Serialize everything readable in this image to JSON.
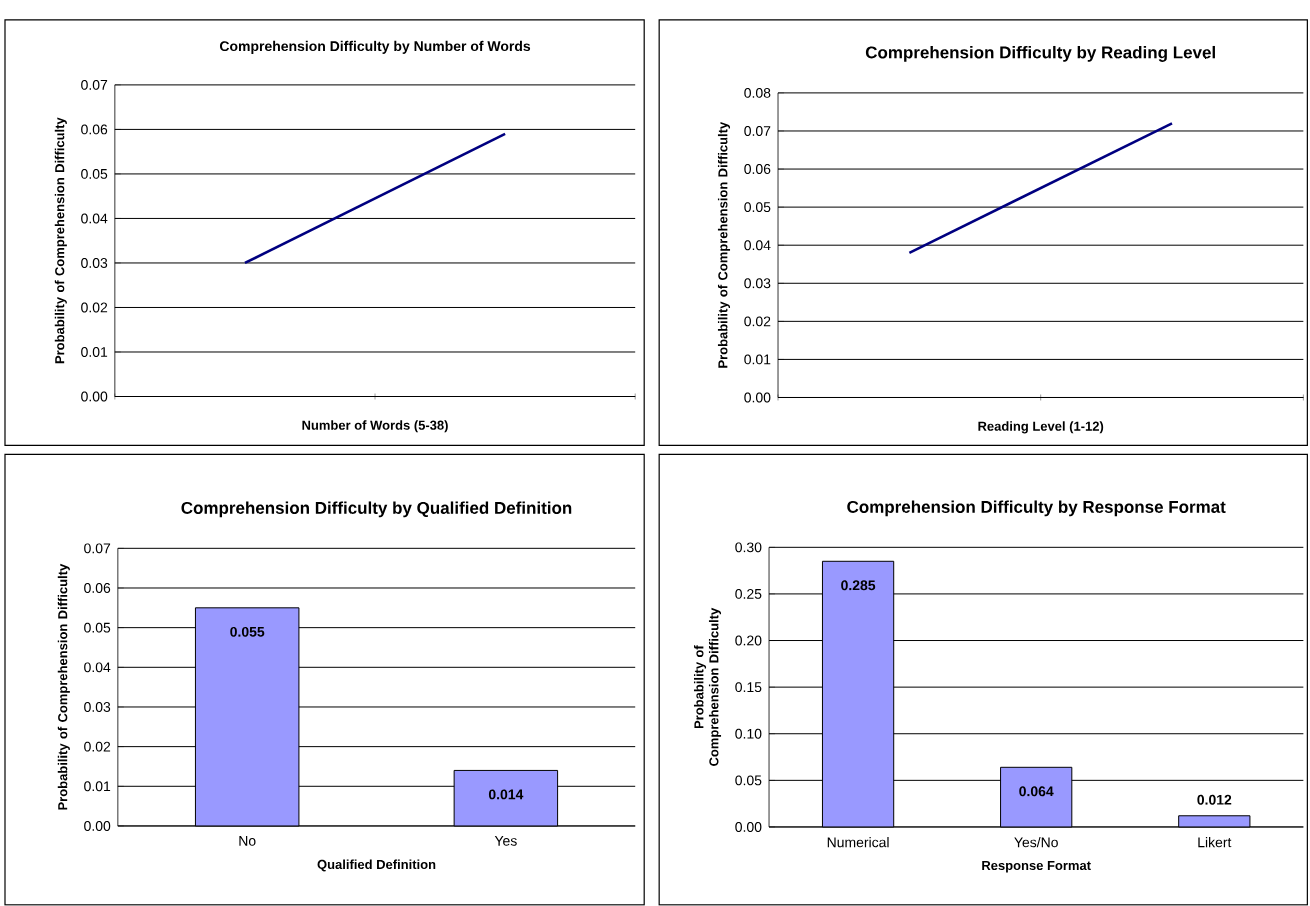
{
  "chart_data": [
    {
      "type": "line",
      "title": "Comprehension Difficulty by Number of Words",
      "xlabel": "Number of Words (5-38)",
      "ylabel": "Probability of Comprehension Difficulty",
      "categories": [
        null,
        null
      ],
      "series": [
        {
          "color": "#000080",
          "values": [
            0.03,
            0.059
          ]
        }
      ],
      "ylim": [
        0,
        0.07
      ],
      "yticks": [
        {
          "value": 0,
          "label": "0.00"
        },
        0.01,
        0.02,
        0.03,
        0.04,
        0.05,
        0.06,
        0.07
      ],
      "grid": "y"
    },
    {
      "type": "line",
      "title": "Comprehension Difficulty by Reading Level",
      "xlabel": "Reading Level (1-12)",
      "ylabel": "Probability of Comprehension Difficulty",
      "categories": [
        null,
        null
      ],
      "series": [
        {
          "color": "#000080",
          "values": [
            0.038,
            0.072
          ]
        }
      ],
      "ylim": [
        0,
        0.08
      ],
      "yticks": [
        {
          "value": 0,
          "label": "0.00"
        },
        0.01,
        0.02,
        0.03,
        0.04,
        0.05,
        0.06,
        0.07,
        0.08
      ],
      "grid": "y"
    },
    {
      "type": "bar",
      "title": "Comprehension Difficulty by Qualified Definition",
      "xlabel": "Qualified Definition",
      "ylabel": "Probability of Comprehension Difficulty",
      "categories": [
        "No",
        "Yes"
      ],
      "series": [
        {
          "color": "#9999ff",
          "values": [
            0.055,
            0.014
          ]
        }
      ],
      "ylim": [
        0,
        0.07
      ],
      "yticks": [
        {
          "value": 0,
          "label": "0.00"
        },
        0.01,
        0.02,
        0.03,
        0.04,
        0.05,
        0.06,
        0.07
      ],
      "grid": "y",
      "data_labels": true
    },
    {
      "type": "bar",
      "title": "Comprehension Difficulty by Response Format",
      "xlabel": "Response Format",
      "ylabel": "Probability of Comprehension Difficulty",
      "categories": [
        "Numerical",
        "Yes/No",
        "Likert"
      ],
      "series": [
        {
          "color": "#9999ff",
          "values": [
            0.285,
            0.064,
            0.012
          ]
        }
      ],
      "ylim": [
        0,
        0.3
      ],
      "yticks": [
        {
          "value": 0,
          "label": "0.00"
        },
        0.05,
        {
          "value": 0.1,
          "label": "0.10"
        },
        0.15,
        {
          "value": 0.2,
          "label": "0.20"
        },
        0.25,
        {
          "value": 0.3,
          "label": "0.30"
        }
      ],
      "grid": "y",
      "data_labels": true
    }
  ]
}
